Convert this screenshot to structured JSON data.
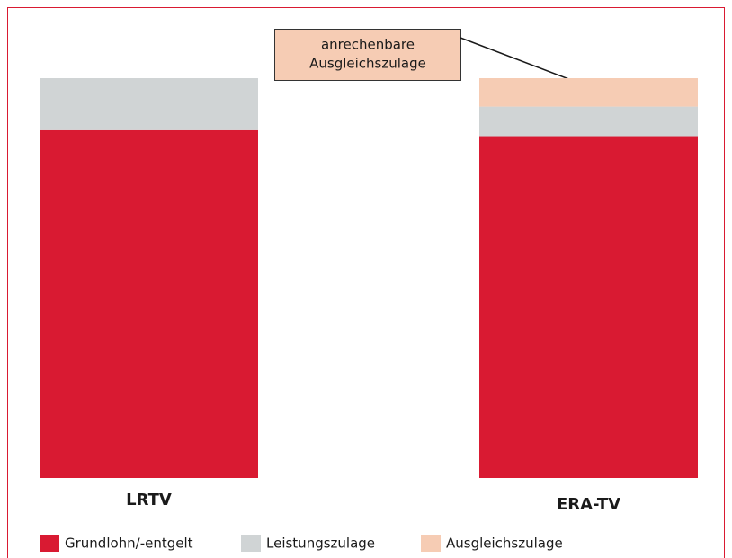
{
  "chart_data": {
    "type": "stacked_bar",
    "categories": [
      "LRTV",
      "ERA-TV"
    ],
    "series": [
      {
        "name": "Grundlohn/-entgelt",
        "color": "#d91a32",
        "values": [
          87,
          85.5
        ]
      },
      {
        "name": "Leistungszulage",
        "color": "#d0d4d5",
        "values": [
          13,
          7.4
        ]
      },
      {
        "name": "Ausgleichszulage",
        "color": "#f6ccb4",
        "values": [
          0,
          7.1
        ]
      }
    ],
    "annotation": [
      "anrechenbare",
      "Ausgleichszulage"
    ]
  }
}
